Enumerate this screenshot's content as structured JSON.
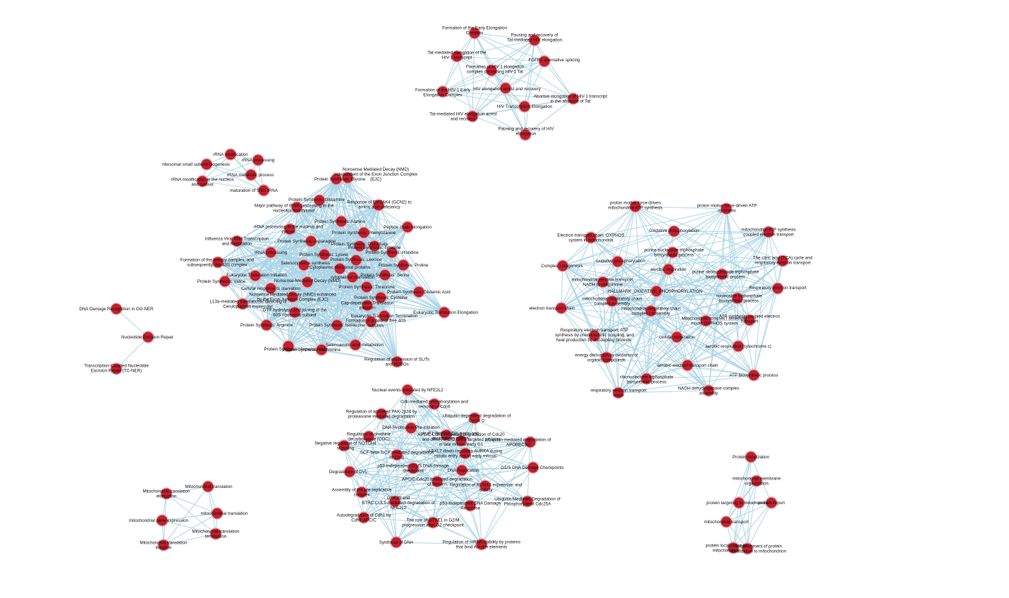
{
  "colors": {
    "node_fill": "#c21f2e",
    "node_stroke": "#e3a2a8",
    "edge": "#a9d3e6",
    "label": "#111111"
  },
  "clusters": [
    {
      "id": "hiv_elongation",
      "nodes": [
        {
          "id": "h1",
          "label": "Formation of the Early Elongation Complex"
        },
        {
          "id": "h2",
          "label": "Pausing and recovery of Tat-mediated HIV elongation"
        },
        {
          "id": "h3",
          "label": "Tat-mediated elongation of the HIV-1 transcript"
        },
        {
          "id": "h4",
          "label": "FGFR2 alternative splicing"
        },
        {
          "id": "h5",
          "label": "Formation of HIV-1 elongation complex containing HIV-1 Tat"
        },
        {
          "id": "h6",
          "label": "Formation of the HIV-1 Early Elongation Complex"
        },
        {
          "id": "h7",
          "label": "HIV elongation arrest and recovery"
        },
        {
          "id": "h8",
          "label": "Abortive elongation of HIV-1 transcript in the absence of Tat"
        },
        {
          "id": "h9",
          "label": "HIV Transcription Elongation"
        },
        {
          "id": "h10",
          "label": "Tat-mediated HIV elongation arrest and recovery"
        },
        {
          "id": "h11",
          "label": "Pausing and recovery of HIV elongation"
        }
      ]
    },
    {
      "id": "rrna",
      "nodes": [
        {
          "id": "r1",
          "label": "rRNA modification"
        },
        {
          "id": "r2",
          "label": "rRNA processing"
        },
        {
          "id": "r3",
          "label": "ribosomal small subunit biogenesis"
        },
        {
          "id": "r4",
          "label": "rRNA metabolic process"
        },
        {
          "id": "r5",
          "label": "rRNA modification in the nucleus and cytosol"
        },
        {
          "id": "r6",
          "label": "maturation of SSU-rRNA"
        }
      ]
    },
    {
      "id": "translation",
      "nodes": [
        {
          "id": "t1",
          "label": "Nonsense Mediated Decay (NMD) independent of the Exon Junction Complex (EJC)"
        },
        {
          "id": "t2",
          "label": "Protein Synthesis: Glycine"
        },
        {
          "id": "t3",
          "label": "Protein Synthesis: Glutamine"
        },
        {
          "id": "t4",
          "label": "Response of EIF2AK4 (GCN2) to amino acid deficiency"
        },
        {
          "id": "t5",
          "label": "Major pathway of rRNA processing in the nucleolus and cytosol"
        },
        {
          "id": "t6",
          "label": "Protein Synthesis: Alanine"
        },
        {
          "id": "t7",
          "label": "Peptide chain elongation"
        },
        {
          "id": "t8",
          "label": "rRNA processing in the nucleus and cytosol"
        },
        {
          "id": "t9",
          "label": "Protein Synthesis: Phenylalanine"
        },
        {
          "id": "t10",
          "label": "Influenza Viral RNA Transcription and Replication"
        },
        {
          "id": "t11",
          "label": "Protein Synthesis: Asparagine"
        },
        {
          "id": "t12",
          "label": "Protein Synthesis: Glutamate"
        },
        {
          "id": "t13",
          "label": "Protein Synthesis: Tyrosine"
        },
        {
          "id": "t14",
          "label": "rRNA processing"
        },
        {
          "id": "t15",
          "label": "Protein Synthesis: Lysine"
        },
        {
          "id": "t16",
          "label": "Protein Synthesis: Histidine"
        },
        {
          "id": "t17",
          "label": "Formation of the ternary complex, and subsequently, the 43S complex"
        },
        {
          "id": "t18",
          "label": "Selenocysteine synthesis"
        },
        {
          "id": "t19",
          "label": "Protein Synthesis: Leucine"
        },
        {
          "id": "t20",
          "label": "Cytoplasmic ribosomal proteins"
        },
        {
          "id": "t21",
          "label": "Protein Synthesis: Proline"
        },
        {
          "id": "t22",
          "label": "Eukaryotic Translation Initiation"
        },
        {
          "id": "t23",
          "label": "cytoplasmic translation"
        },
        {
          "id": "t24",
          "label": "Protein Synthesis: Valine"
        },
        {
          "id": "t25",
          "label": "Nonsense-Mediated Decay (NMD)"
        },
        {
          "id": "t26",
          "label": "Protein Synthesis: Serine"
        },
        {
          "id": "t27",
          "label": "Cellular response to starvation"
        },
        {
          "id": "t28",
          "label": "Protein Synthesis: Threonine"
        },
        {
          "id": "t29",
          "label": "Protein Synthesis: Glutamic Acid"
        },
        {
          "id": "t30",
          "label": "Nonsense Mediated Decay (NMD) enhanced by the Exon Junction Complex (EJC)"
        },
        {
          "id": "t31",
          "label": "L13a-mediated translational silencing of Ceruloplasmin expression"
        },
        {
          "id": "t32",
          "label": "Protein Synthesis: Cysteine"
        },
        {
          "id": "t33",
          "label": "Cap-dependent Translation Initiation"
        },
        {
          "id": "t34",
          "label": "GTP hydrolysis and joining of the 60S ribosomal subunit"
        },
        {
          "id": "t35",
          "label": "Eukaryotic Translation Termination"
        },
        {
          "id": "t36",
          "label": "Eukaryotic Translation Elongation"
        },
        {
          "id": "t37",
          "label": "Formation of a pool of free 40S subunits"
        },
        {
          "id": "t38",
          "label": "Protein Synthesis: Arginine"
        },
        {
          "id": "t39",
          "label": "Protein Synthesis: Isoleucine"
        },
        {
          "id": "t40",
          "label": "Selenoamino acid metabolism"
        },
        {
          "id": "t41",
          "label": "Protein Synthesis: Aspartic Acid"
        },
        {
          "id": "t42",
          "label": "Protein Synthesis: Methionine"
        },
        {
          "id": "t43",
          "label": "Regulation of expression of SLITs and ROBOs"
        }
      ]
    },
    {
      "id": "oxphos",
      "nodes": [
        {
          "id": "o1",
          "label": "proton motive force-driven mitochondrial ATP synthesis"
        },
        {
          "id": "o2",
          "label": "proton motive force-driven ATP synthesis"
        },
        {
          "id": "o3",
          "label": "Electron transport chain: OXPHOS system in mitochondria"
        },
        {
          "id": "o4",
          "label": "Oxidative phosphorylation"
        },
        {
          "id": "o5",
          "label": "mitochondrial ATP synthesis coupled electron transport"
        },
        {
          "id": "o6",
          "label": "purine nucleoside triphosphate biosynthetic process"
        },
        {
          "id": "o7",
          "label": "The citric acid (TCA) cycle and respiratory electron transport"
        },
        {
          "id": "o8",
          "label": "Complex I biogenesis"
        },
        {
          "id": "o9",
          "label": "oxidative phosphorylation"
        },
        {
          "id": "o10",
          "label": "aerobic respiration"
        },
        {
          "id": "o11",
          "label": "purine ribonucleoside triphosphate biosynthetic process"
        },
        {
          "id": "o12",
          "label": "mitochondrial electron transport, NADH to ubiquinone"
        },
        {
          "id": "o13",
          "label": "Respiratory electron transport"
        },
        {
          "id": "o14",
          "label": "HALLMARK_OXIDATIVE_PHOSPHORYLATION"
        },
        {
          "id": "o15",
          "label": "nucleoside triphosphate biosynthetic process"
        },
        {
          "id": "o16",
          "label": "mitochondrial respiratory chain complex assembly"
        },
        {
          "id": "o17",
          "label": "electron transport chain"
        },
        {
          "id": "o18",
          "label": "mitochondrial respiratory chain complex I assembly"
        },
        {
          "id": "o19",
          "label": "Mitochondrial complex I assembly model OXPHOS system"
        },
        {
          "id": "o20",
          "label": "ATP synthesis coupled electron transport"
        },
        {
          "id": "o21",
          "label": "Respiratory electron transport, ATP synthesis by chemiosmotic coupling, and heat production by uncoupling proteins."
        },
        {
          "id": "o22",
          "label": "cellular respiration"
        },
        {
          "id": "o23",
          "label": "aerobic respiration (cytochrome c)"
        },
        {
          "id": "o24",
          "label": "energy derivation by oxidation of organic compounds"
        },
        {
          "id": "o25",
          "label": "aerobic electron transport chain"
        },
        {
          "id": "o26",
          "label": "ribonucleoside triphosphate biosynthetic process"
        },
        {
          "id": "o27",
          "label": "ATP biosynthetic process"
        },
        {
          "id": "o28",
          "label": "NADH dehydrogenase complex assembly"
        },
        {
          "id": "o29",
          "label": "respiratory electron transport chain"
        }
      ]
    },
    {
      "id": "ner",
      "nodes": [
        {
          "id": "n1",
          "label": "DNA Damage Recognition in GG-NER"
        },
        {
          "id": "n2",
          "label": "Nucleotide Excision Repair"
        },
        {
          "id": "n3",
          "label": "Transcription-Coupled Nucleotide Excision Repair (TC-NER)"
        }
      ]
    },
    {
      "id": "cell_cycle",
      "nodes": [
        {
          "id": "c1",
          "label": "Nuclear events mediated by NFE2L2"
        },
        {
          "id": "c2",
          "label": "Cdk-mediated phosphorylation and removal of Cdc6"
        },
        {
          "id": "c3",
          "label": "Regulation of activated PAK-2p34 by proteasome mediated degradation"
        },
        {
          "id": "c4",
          "label": "Ubiquitin-dependent degradation of Cyclin D"
        },
        {
          "id": "c5",
          "label": "DNA Replication Pre-Initiation"
        },
        {
          "id": "c6",
          "label": "Regulation of ornithine decarboxylase (ODC)"
        },
        {
          "id": "c7",
          "label": "AUF1 (hnRNP D0) binds and destabilizes mRNA"
        },
        {
          "id": "c8",
          "label": "Negative regulation of NOTCH4 signaling"
        },
        {
          "id": "c9",
          "label": "APC/C:Cdh1 mediated degradation of Cdc20 and other APC/C:Cdh1 targeted proteins in late mitosis/early G1"
        },
        {
          "id": "c10",
          "label": "Ubiquitin-mediated degradation of APOBEC3G"
        },
        {
          "id": "c11",
          "label": "SCF-beta-TrCP mediated degradation of Emi1"
        },
        {
          "id": "c12",
          "label": "FBXL7 down-regulates AURKA during mitotic entry and in early mitosis"
        },
        {
          "id": "c13",
          "label": "Degradation of DVL"
        },
        {
          "id": "c14",
          "label": "p53-Independent G1/S DNA damage checkpoint"
        },
        {
          "id": "c15",
          "label": "DNA Replication"
        },
        {
          "id": "c16",
          "label": "G1/S DNA Damage Checkpoints"
        },
        {
          "id": "c17",
          "label": "APC/C:Cdc20 mediated degradation of Securin"
        },
        {
          "id": "c18",
          "label": "Assembly of the pre-replicative complex"
        },
        {
          "id": "c19",
          "label": "Regulation of RUNX3 expression and activity"
        },
        {
          "id": "c20",
          "label": "GSK3B and BTRC:CUL1-mediated-degradation of NFE2L2"
        },
        {
          "id": "c21",
          "label": "p53-Independent DNA Damage Response"
        },
        {
          "id": "c22",
          "label": "Ubiquitin Mediated Degradation of Phosphorylated Cdc25A"
        },
        {
          "id": "c23",
          "label": "Autodegradation of Cdh1 by Cdh1:APC/C"
        },
        {
          "id": "c24",
          "label": "The role of GTSE1 in G2/M progression after G2 checkpoint"
        },
        {
          "id": "c25",
          "label": "Synthesis of DNA"
        },
        {
          "id": "c26",
          "label": "Regulation of mRNA stability by proteins that bind AU-rich elements"
        }
      ]
    },
    {
      "id": "mito_translation",
      "nodes": [
        {
          "id": "m1",
          "label": "Mitochondrial translation"
        },
        {
          "id": "m2",
          "label": "Mitochondrial translation elongation"
        },
        {
          "id": "m3",
          "label": "mitochondrial translation"
        },
        {
          "id": "m4",
          "label": "mitochondrial gene expression"
        },
        {
          "id": "m5",
          "label": "Mitochondrial translation termination"
        },
        {
          "id": "m6",
          "label": "Mitochondrial translation initiation"
        }
      ]
    },
    {
      "id": "protein_localization",
      "nodes": [
        {
          "id": "p1",
          "label": "Protein localization"
        },
        {
          "id": "p2",
          "label": "mitochondrial membrane organization"
        },
        {
          "id": "p3",
          "label": "protein targeting to mitochondrion"
        },
        {
          "id": "p4",
          "label": "mitochondrial transport"
        },
        {
          "id": "p5",
          "label": "protein import"
        },
        {
          "id": "p6",
          "label": "protein localization to mitochondrion"
        },
        {
          "id": "p7",
          "label": "establishment of protein localization to mitochondrion"
        }
      ]
    }
  ]
}
